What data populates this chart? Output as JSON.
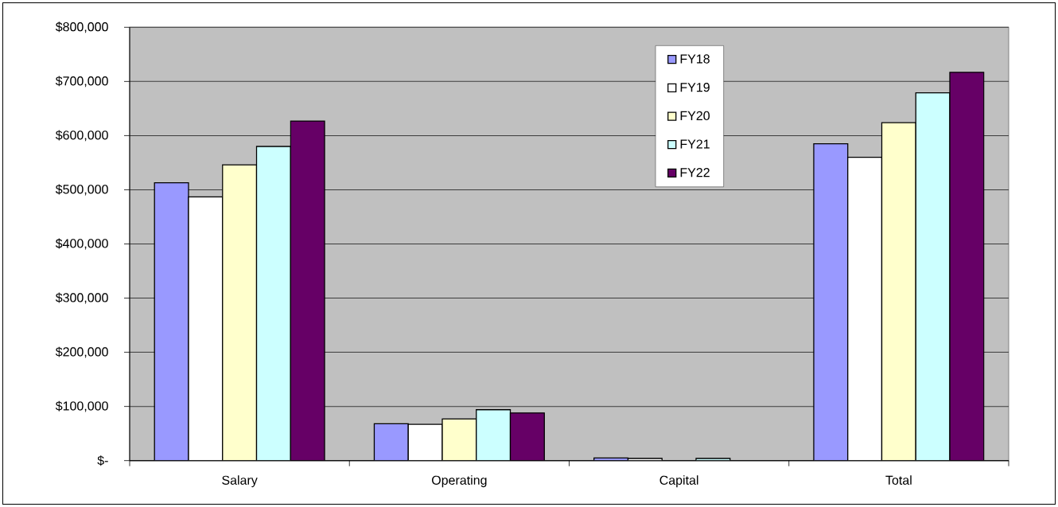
{
  "chart_data": {
    "type": "bar",
    "categories": [
      "Salary",
      "Operating",
      "Capital",
      "Total"
    ],
    "series": [
      {
        "name": "FY18",
        "color": "#9999ff",
        "values": [
          513000,
          68000,
          5000,
          585000
        ]
      },
      {
        "name": "FY19",
        "color": "#ffffff",
        "values": [
          487000,
          67000,
          4000,
          560000
        ]
      },
      {
        "name": "FY20",
        "color": "#ffffcc",
        "values": [
          546000,
          77000,
          null,
          624000
        ]
      },
      {
        "name": "FY21",
        "color": "#ccffff",
        "values": [
          580000,
          94000,
          4000,
          679000
        ]
      },
      {
        "name": "FY22",
        "color": "#660066",
        "values": [
          627000,
          88000,
          null,
          717000
        ]
      }
    ],
    "ylim": [
      0,
      800000
    ],
    "yticks": [
      {
        "value": 0,
        "label": "$-"
      },
      {
        "value": 100000,
        "label": "$100,000"
      },
      {
        "value": 200000,
        "label": "$200,000"
      },
      {
        "value": 300000,
        "label": "$300,000"
      },
      {
        "value": 400000,
        "label": "$400,000"
      },
      {
        "value": 500000,
        "label": "$500,000"
      },
      {
        "value": 600000,
        "label": "$600,000"
      },
      {
        "value": 700000,
        "label": "$700,000"
      },
      {
        "value": 800000,
        "label": "$800,000"
      }
    ],
    "grid": "y",
    "legend": "top"
  }
}
